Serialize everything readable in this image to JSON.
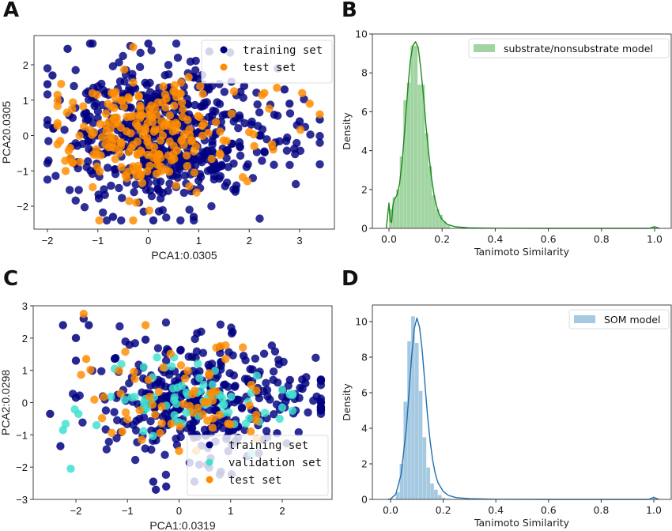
{
  "panels": {
    "A": "A",
    "B": "B",
    "C": "C",
    "D": "D"
  },
  "chart_data": [
    {
      "id": "A",
      "type": "scatter",
      "title": "",
      "xlabel": "PCA1:0.0305",
      "ylabel": "PCA20.0305",
      "xlim": [
        -2.25,
        3.65
      ],
      "ylim": [
        -2.7,
        2.8
      ],
      "xticks": [
        -2,
        -1,
        0,
        1,
        2,
        3
      ],
      "yticks": [
        -2,
        -1,
        0,
        1,
        2
      ],
      "xtick_labels": [
        "−2",
        "−1",
        "0",
        "1",
        "2",
        "3"
      ],
      "ytick_labels": [
        "−2",
        "−1",
        "0",
        "1",
        "2"
      ],
      "legend": {
        "position": "top-right",
        "entries": [
          "training set",
          "test set"
        ]
      },
      "series": [
        {
          "name": "training set",
          "color": "#000080",
          "n_points": 600,
          "cluster": {
            "x_mean": 0.0,
            "x_sd": 0.9,
            "y_mean": 0.0,
            "y_sd": 1.0,
            "x_range": [
              -2.0,
              3.4
            ],
            "y_range": [
              -2.4,
              2.6
            ]
          }
        },
        {
          "name": "test set",
          "color": "#ff8c00",
          "n_points": 220,
          "cluster": {
            "x_mean": -0.3,
            "x_sd": 0.75,
            "y_mean": 0.0,
            "y_sd": 0.9,
            "x_range": [
              -1.8,
              3.4
            ],
            "y_range": [
              -2.4,
              2.5
            ]
          }
        }
      ],
      "highlighted_points": {
        "training set": [
          [
            -1.6,
            2.45
          ],
          [
            0.0,
            2.6
          ],
          [
            -1.9,
            1.7
          ],
          [
            -2.0,
            1.45
          ],
          [
            3.4,
            0.45
          ],
          [
            3.0,
            0.4
          ],
          [
            2.7,
            1.3
          ],
          [
            1.9,
            1.4
          ],
          [
            0.9,
            -2.3
          ],
          [
            0.1,
            -2.4
          ],
          [
            -0.7,
            -2.3
          ],
          [
            2.3,
            -0.45
          ],
          [
            1.3,
            -0.8
          ],
          [
            1.6,
            0.6
          ],
          [
            2.2,
            0.0
          ],
          [
            2.8,
            0.9
          ],
          [
            -1.5,
            0.5
          ],
          [
            1.0,
            1.6
          ],
          [
            1.2,
            1.3
          ],
          [
            1.45,
            0.2
          ]
        ],
        "test set": [
          [
            -1.8,
            1.15
          ],
          [
            -0.3,
            2.5
          ],
          [
            3.4,
            0.6
          ],
          [
            3.2,
            0.9
          ],
          [
            3.05,
            1.2
          ],
          [
            2.55,
            1.35
          ],
          [
            2.3,
            1.2
          ],
          [
            1.7,
            1.25
          ],
          [
            -0.3,
            -2.4
          ],
          [
            -1.55,
            -0.65
          ],
          [
            -1.55,
            -0.35
          ],
          [
            2.1,
            -0.3
          ],
          [
            2.45,
            -0.25
          ],
          [
            2.0,
            0.1
          ],
          [
            0.8,
            1.65
          ],
          [
            0.5,
            1.25
          ]
        ]
      }
    },
    {
      "id": "B",
      "type": "bar",
      "subtype": "histogram_with_kde",
      "title": "",
      "xlabel": "Tanimoto Similarity",
      "ylabel": "Density",
      "xlim": [
        -0.05,
        1.03
      ],
      "ylim": [
        0,
        10
      ],
      "xticks": [
        0.0,
        0.2,
        0.4,
        0.6,
        0.8,
        1.0
      ],
      "xtick_labels": [
        "0.0",
        "0.2",
        "0.4",
        "0.6",
        "0.8",
        "1.0"
      ],
      "yticks": [
        0,
        2,
        4,
        6,
        8,
        10
      ],
      "ytick_labels": [
        "0",
        "2",
        "4",
        "6",
        "8",
        "10"
      ],
      "legend": {
        "position": "top-right",
        "entries": [
          "substrate/nonsubstrate model"
        ]
      },
      "bar_color": "#2ca02c",
      "bar_alpha": 0.45,
      "kde_color": "#1a8a1a",
      "bins": {
        "left_edges": [
          0.0,
          0.0135,
          0.027,
          0.0405,
          0.054,
          0.0675,
          0.081,
          0.0945,
          0.108,
          0.1215,
          0.135,
          0.1485,
          0.162,
          0.1755,
          0.189,
          0.2025,
          0.216,
          0.995
        ],
        "width": 0.0135,
        "density": [
          1.0,
          1.6,
          2.0,
          3.7,
          6.6,
          7.5,
          9.4,
          9.4,
          7.4,
          7.4,
          4.9,
          3.2,
          1.7,
          1.0,
          0.7,
          0.35,
          0.15,
          0.05
        ]
      },
      "kde": {
        "x": [
          -0.01,
          0.0,
          0.005,
          0.01,
          0.015,
          0.02,
          0.03,
          0.04,
          0.05,
          0.06,
          0.07,
          0.08,
          0.09,
          0.1,
          0.11,
          0.12,
          0.13,
          0.14,
          0.15,
          0.16,
          0.17,
          0.18,
          0.19,
          0.2,
          0.22,
          0.25,
          0.3,
          0.4,
          0.6,
          0.8,
          0.98,
          0.995,
          1.0,
          1.005,
          1.02
        ],
        "y": [
          0.0,
          1.3,
          0.4,
          0.3,
          1.2,
          1.5,
          1.7,
          2.3,
          3.5,
          5.2,
          7.0,
          8.6,
          9.4,
          9.6,
          9.3,
          8.2,
          6.8,
          5.2,
          3.8,
          2.6,
          1.7,
          1.1,
          0.7,
          0.45,
          0.2,
          0.08,
          0.03,
          0.01,
          0.0,
          0.0,
          0.0,
          0.07,
          0.08,
          0.06,
          0.0
        ]
      }
    },
    {
      "id": "C",
      "type": "scatter",
      "title": "",
      "xlabel": "PCA1:0.0319",
      "ylabel": "PCA2:0.0298",
      "xlim": [
        -2.8,
        2.95
      ],
      "ylim": [
        -3,
        3
      ],
      "xticks": [
        -2,
        -1,
        0,
        1,
        2
      ],
      "yticks": [
        -3,
        -2,
        -1,
        0,
        1,
        2,
        3
      ],
      "xtick_labels": [
        "−2",
        "−1",
        "0",
        "1",
        "2"
      ],
      "ytick_labels": [
        "−3",
        "−2",
        "−1",
        "0",
        "1",
        "2",
        "3"
      ],
      "legend": {
        "position": "lower-right",
        "entries": [
          "training set",
          "validation set",
          "test set"
        ]
      },
      "series": [
        {
          "name": "training set",
          "color": "#000080",
          "n_points": 380,
          "cluster": {
            "x_mean": 0.1,
            "x_sd": 0.95,
            "y_mean": 0.1,
            "y_sd": 0.9,
            "x_range": [
              -2.6,
              2.75
            ],
            "y_range": [
              -2.75,
              2.6
            ]
          }
        },
        {
          "name": "validation set",
          "color": "#40e0d0",
          "n_points": 70,
          "cluster": {
            "x_mean": -0.1,
            "x_sd": 0.85,
            "y_mean": 0.1,
            "y_sd": 0.6,
            "x_range": [
              -2.2,
              2.2
            ],
            "y_range": [
              -2.1,
              1.4
            ]
          }
        },
        {
          "name": "test set",
          "color": "#ff8c00",
          "n_points": 60,
          "cluster": {
            "x_mean": -0.2,
            "x_sd": 0.7,
            "y_mean": 0.1,
            "y_sd": 0.7,
            "x_range": [
              -1.9,
              1.5
            ],
            "y_range": [
              -1.5,
              2.8
            ]
          }
        }
      ],
      "highlighted_points": {
        "training set": [
          [
            -2.25,
            2.4
          ],
          [
            -2.0,
            2.0
          ],
          [
            -2.0,
            1.3
          ],
          [
            -2.0,
            0.15
          ],
          [
            -2.5,
            -0.35
          ],
          [
            -2.3,
            -1.35
          ],
          [
            -1.85,
            2.6
          ],
          [
            -1.75,
            2.4
          ],
          [
            -0.65,
            1.95
          ],
          [
            0.35,
            2.15
          ],
          [
            2.75,
            -0.15
          ],
          [
            2.45,
            0.6
          ],
          [
            2.15,
            0.7
          ],
          [
            -0.45,
            -2.7
          ],
          [
            -0.5,
            -2.45
          ],
          [
            -0.25,
            -2.6
          ],
          [
            1.25,
            1.45
          ],
          [
            1.9,
            -0.95
          ]
        ],
        "validation set": [
          [
            -2.1,
            -2.05
          ],
          [
            -2.25,
            -0.85
          ],
          [
            -1.95,
            -0.35
          ],
          [
            -1.6,
            -0.7
          ],
          [
            2.0,
            0.4
          ],
          [
            2.15,
            0.25
          ],
          [
            2.0,
            -0.15
          ],
          [
            1.95,
            -0.5
          ],
          [
            -1.25,
            1.05
          ],
          [
            1.4,
            0.3
          ]
        ],
        "test set": [
          [
            -1.85,
            2.75
          ],
          [
            -0.65,
            2.4
          ],
          [
            -1.8,
            1.35
          ],
          [
            0.8,
            1.75
          ],
          [
            0.9,
            1.35
          ],
          [
            1.4,
            0.55
          ],
          [
            0.95,
            -0.65
          ],
          [
            0.0,
            -1.5
          ],
          [
            -1.1,
            -0.9
          ]
        ]
      }
    },
    {
      "id": "D",
      "type": "bar",
      "subtype": "histogram_with_kde",
      "title": "",
      "xlabel": "Tanimoto Similarity",
      "ylabel": "Density",
      "xlim": [
        -0.05,
        1.03
      ],
      "ylim": [
        0,
        10.9
      ],
      "xticks": [
        0.0,
        0.2,
        0.4,
        0.6,
        0.8,
        1.0
      ],
      "xtick_labels": [
        "0.0",
        "0.2",
        "0.4",
        "0.6",
        "0.8",
        "1.0"
      ],
      "yticks": [
        0,
        2,
        4,
        6,
        8,
        10
      ],
      "ytick_labels": [
        "0",
        "2",
        "4",
        "6",
        "8",
        "10"
      ],
      "legend": {
        "position": "top-right",
        "entries": [
          "SOM model"
        ]
      },
      "bar_color": "#1f77b4",
      "bar_alpha": 0.4,
      "kde_color": "#1f6fb0",
      "bins": {
        "left_edges": [
          0.02,
          0.0345,
          0.049,
          0.0635,
          0.078,
          0.0925,
          0.107,
          0.1215,
          0.136,
          0.1505,
          0.165,
          0.1795,
          0.194,
          0.2085,
          0.223,
          0.995
        ],
        "width": 0.0145,
        "density": [
          0.4,
          2.0,
          5.5,
          8.9,
          10.3,
          8.8,
          6.1,
          3.5,
          1.8,
          0.9,
          0.55,
          0.25,
          0.1,
          0.05,
          0.03,
          0.05
        ]
      },
      "kde": {
        "x": [
          -0.01,
          0.0,
          0.02,
          0.04,
          0.06,
          0.07,
          0.08,
          0.09,
          0.1,
          0.11,
          0.12,
          0.13,
          0.14,
          0.15,
          0.16,
          0.17,
          0.18,
          0.2,
          0.22,
          0.25,
          0.3,
          0.4,
          0.6,
          0.8,
          0.98,
          0.995,
          1.0,
          1.005,
          1.02
        ],
        "y": [
          0.0,
          0.02,
          0.3,
          1.4,
          4.0,
          6.0,
          8.0,
          9.6,
          10.2,
          9.7,
          8.4,
          6.6,
          4.8,
          3.3,
          2.2,
          1.45,
          0.95,
          0.45,
          0.22,
          0.1,
          0.04,
          0.01,
          0.0,
          0.0,
          0.0,
          0.08,
          0.12,
          0.08,
          0.0
        ]
      }
    }
  ]
}
